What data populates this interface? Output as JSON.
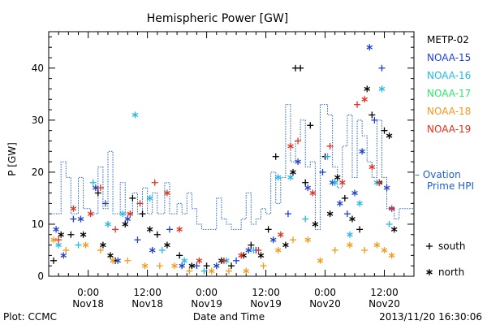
{
  "chart_data": {
    "type": "scatter",
    "title": "Hemispheric Power [GW]",
    "ylabel": "P [GW]",
    "xlabel": "Date and Time",
    "ylim": [
      0,
      47
    ],
    "yticks": [
      0,
      10,
      20,
      30,
      40
    ],
    "xlim": [
      "2013-11-17T16:00",
      "2013-11-20T18:00"
    ],
    "xticks": [
      {
        "t": "2013-11-18T00:00",
        "time": "0:00",
        "date": "Nov18"
      },
      {
        "t": "2013-11-18T12:00",
        "time": "12:00",
        "date": "Nov18"
      },
      {
        "t": "2013-11-19T00:00",
        "time": "0:00",
        "date": "Nov19"
      },
      {
        "t": "2013-11-19T12:00",
        "time": "12:00",
        "date": "Nov19"
      },
      {
        "t": "2013-11-20T00:00",
        "time": "0:00",
        "date": "Nov20"
      },
      {
        "t": "2013-11-20T12:00",
        "time": "12:00",
        "date": "Nov20"
      }
    ],
    "footer_left": "Plot: CCMC",
    "footer_right": "2013/11/20 16:30:06",
    "legend": [
      {
        "name": "METP-02",
        "color": "#000000"
      },
      {
        "name": "NOAA-15",
        "color": "#1f3fd0"
      },
      {
        "name": "NOAA-16",
        "color": "#26b8e6"
      },
      {
        "name": "NOAA-17",
        "color": "#2ee86a"
      },
      {
        "name": "NOAA-18",
        "color": "#f29a1a"
      },
      {
        "name": "NOAA-19",
        "color": "#e2301c"
      }
    ],
    "ovation": {
      "label_line1": "– Ovation",
      "label_line2": "Prime HPI",
      "color": "#1f5fd0",
      "steps": [
        [
          "2013-11-17T16:00",
          12
        ],
        [
          "2013-11-17T18:30",
          22
        ],
        [
          "2013-11-17T19:30",
          19
        ],
        [
          "2013-11-17T20:30",
          12
        ],
        [
          "2013-11-17T22:00",
          19
        ],
        [
          "2013-11-17T23:00",
          13
        ],
        [
          "2013-11-18T00:30",
          12
        ],
        [
          "2013-11-18T02:00",
          21
        ],
        [
          "2013-11-18T03:00",
          13
        ],
        [
          "2013-11-18T04:00",
          24
        ],
        [
          "2013-11-18T05:00",
          12
        ],
        [
          "2013-11-18T06:30",
          18
        ],
        [
          "2013-11-18T07:30",
          12
        ],
        [
          "2013-11-18T09:00",
          16
        ],
        [
          "2013-11-18T10:00",
          12
        ],
        [
          "2013-11-18T11:00",
          17
        ],
        [
          "2013-11-18T12:00",
          12
        ],
        [
          "2013-11-18T13:00",
          16
        ],
        [
          "2013-11-18T14:00",
          12
        ],
        [
          "2013-11-18T15:30",
          18
        ],
        [
          "2013-11-18T16:30",
          12
        ],
        [
          "2013-11-18T18:00",
          14
        ],
        [
          "2013-11-18T19:00",
          12
        ],
        [
          "2013-11-18T20:00",
          16
        ],
        [
          "2013-11-18T21:00",
          13
        ],
        [
          "2013-11-18T22:00",
          10
        ],
        [
          "2013-11-18T23:00",
          9
        ],
        [
          "2013-11-19T01:00",
          9
        ],
        [
          "2013-11-19T02:00",
          15
        ],
        [
          "2013-11-19T03:00",
          11
        ],
        [
          "2013-11-19T04:00",
          10
        ],
        [
          "2013-11-19T05:00",
          9
        ],
        [
          "2013-11-19T07:00",
          11
        ],
        [
          "2013-11-19T08:00",
          16
        ],
        [
          "2013-11-19T09:00",
          10
        ],
        [
          "2013-11-19T10:00",
          11
        ],
        [
          "2013-11-19T11:00",
          13
        ],
        [
          "2013-11-19T12:00",
          12
        ],
        [
          "2013-11-19T13:00",
          20
        ],
        [
          "2013-11-19T14:00",
          14
        ],
        [
          "2013-11-19T15:00",
          19
        ],
        [
          "2013-11-19T16:00",
          33
        ],
        [
          "2013-11-19T17:00",
          22
        ],
        [
          "2013-11-19T18:00",
          26
        ],
        [
          "2013-11-19T19:00",
          30
        ],
        [
          "2013-11-19T20:00",
          21
        ],
        [
          "2013-11-19T21:00",
          22
        ],
        [
          "2013-11-19T22:00",
          9
        ],
        [
          "2013-11-19T23:00",
          33
        ],
        [
          "2013-11-20T00:30",
          31
        ],
        [
          "2013-11-20T01:30",
          21
        ],
        [
          "2013-11-20T02:30",
          17
        ],
        [
          "2013-11-20T03:30",
          25
        ],
        [
          "2013-11-20T04:30",
          31
        ],
        [
          "2013-11-20T05:30",
          19
        ],
        [
          "2013-11-20T06:30",
          30
        ],
        [
          "2013-11-20T07:30",
          27
        ],
        [
          "2013-11-20T08:30",
          22
        ],
        [
          "2013-11-20T09:30",
          19
        ],
        [
          "2013-11-20T10:30",
          30
        ],
        [
          "2013-11-20T11:30",
          19
        ],
        [
          "2013-11-20T12:30",
          13
        ],
        [
          "2013-11-20T14:00",
          11
        ],
        [
          "2013-11-20T15:00",
          13
        ],
        [
          "2013-11-20T16:30",
          13
        ]
      ]
    },
    "marker_key": [
      {
        "symbol": "+",
        "label": "south"
      },
      {
        "symbol": "*",
        "label": "north"
      }
    ],
    "series": [
      {
        "name": "METP-02",
        "color": "#000000",
        "points": [
          [
            "2013-11-17T17:00",
            3,
            "+"
          ],
          [
            "2013-11-17T18:30",
            8,
            "*"
          ],
          [
            "2013-11-17T20:30",
            8,
            "+"
          ],
          [
            "2013-11-17T23:00",
            8,
            "*"
          ],
          [
            "2013-11-18T02:00",
            16,
            "+"
          ],
          [
            "2013-11-18T03:00",
            6,
            "*"
          ],
          [
            "2013-11-18T04:30",
            4,
            "*"
          ],
          [
            "2013-11-18T05:30",
            3,
            "+"
          ],
          [
            "2013-11-18T07:30",
            10,
            "*"
          ],
          [
            "2013-11-18T09:00",
            15,
            "+"
          ],
          [
            "2013-11-18T11:00",
            12,
            "+"
          ],
          [
            "2013-11-18T12:30",
            9,
            "*"
          ],
          [
            "2013-11-18T14:00",
            8,
            "+"
          ],
          [
            "2013-11-18T16:00",
            6,
            "*"
          ],
          [
            "2013-11-18T18:30",
            4,
            "+"
          ],
          [
            "2013-11-18T21:00",
            2,
            "*"
          ],
          [
            "2013-11-19T00:00",
            2,
            "+"
          ],
          [
            "2013-11-19T03:00",
            3,
            "*"
          ],
          [
            "2013-11-19T05:00",
            2,
            "+"
          ],
          [
            "2013-11-19T07:30",
            4,
            "*"
          ],
          [
            "2013-11-19T09:00",
            6,
            "+"
          ],
          [
            "2013-11-19T11:00",
            4,
            "*"
          ],
          [
            "2013-11-19T12:30",
            9,
            "+"
          ],
          [
            "2013-11-19T14:00",
            23,
            "+"
          ],
          [
            "2013-11-19T16:00",
            6,
            "*"
          ],
          [
            "2013-11-19T17:30",
            20,
            "*"
          ],
          [
            "2013-11-19T18:00",
            40,
            "+"
          ],
          [
            "2013-11-19T19:00",
            40,
            "+"
          ],
          [
            "2013-11-19T20:00",
            18,
            "+"
          ],
          [
            "2013-11-19T21:00",
            29,
            "+"
          ],
          [
            "2013-11-19T22:00",
            10,
            "*"
          ],
          [
            "2013-11-20T00:00",
            23,
            "+"
          ],
          [
            "2013-11-20T01:00",
            12,
            "*"
          ],
          [
            "2013-11-20T02:30",
            19,
            "*"
          ],
          [
            "2013-11-20T04:00",
            15,
            "+"
          ],
          [
            "2013-11-20T05:30",
            11,
            "*"
          ],
          [
            "2013-11-20T07:00",
            9,
            "+"
          ],
          [
            "2013-11-20T08:30",
            36,
            "*"
          ],
          [
            "2013-11-20T09:30",
            31,
            "+"
          ],
          [
            "2013-11-20T11:00",
            18,
            "*"
          ],
          [
            "2013-11-20T12:00",
            28,
            "+"
          ],
          [
            "2013-11-20T13:00",
            27,
            "*"
          ],
          [
            "2013-11-20T14:00",
            9,
            "*"
          ]
        ]
      },
      {
        "name": "NOAA-15",
        "color": "#1f3fd0",
        "points": [
          [
            "2013-11-17T17:30",
            9,
            "*"
          ],
          [
            "2013-11-17T19:00",
            4,
            "*"
          ],
          [
            "2013-11-17T21:00",
            11,
            "+"
          ],
          [
            "2013-11-17T22:30",
            11,
            "*"
          ],
          [
            "2013-11-18T01:30",
            17,
            "*"
          ],
          [
            "2013-11-18T03:30",
            14,
            "+"
          ],
          [
            "2013-11-18T06:00",
            3,
            "*"
          ],
          [
            "2013-11-18T08:00",
            11,
            "*"
          ],
          [
            "2013-11-18T10:00",
            7,
            "+"
          ],
          [
            "2013-11-18T13:00",
            5,
            "*"
          ],
          [
            "2013-11-18T16:30",
            9,
            "+"
          ],
          [
            "2013-11-18T19:00",
            2,
            "*"
          ],
          [
            "2013-11-18T22:00",
            2,
            "+"
          ],
          [
            "2013-11-19T02:00",
            2,
            "*"
          ],
          [
            "2013-11-19T06:00",
            3,
            "+"
          ],
          [
            "2013-11-19T08:30",
            5,
            "*"
          ],
          [
            "2013-11-19T10:00",
            5,
            "+"
          ],
          [
            "2013-11-19T13:30",
            7,
            "*"
          ],
          [
            "2013-11-19T16:30",
            12,
            "+"
          ],
          [
            "2013-11-19T18:30",
            22,
            "*"
          ],
          [
            "2013-11-19T20:30",
            17,
            "*"
          ],
          [
            "2013-11-19T23:30",
            20,
            "+"
          ],
          [
            "2013-11-20T01:30",
            18,
            "*"
          ],
          [
            "2013-11-20T03:00",
            14,
            "*"
          ],
          [
            "2013-11-20T04:30",
            12,
            "+"
          ],
          [
            "2013-11-20T06:00",
            16,
            "*"
          ],
          [
            "2013-11-20T07:30",
            24,
            "*"
          ],
          [
            "2013-11-20T09:00",
            44,
            "*"
          ],
          [
            "2013-11-20T10:00",
            30,
            "+"
          ],
          [
            "2013-11-20T11:30",
            40,
            "+"
          ],
          [
            "2013-11-20T12:30",
            17,
            "*"
          ],
          [
            "2013-11-20T13:30",
            13,
            "*"
          ]
        ]
      },
      {
        "name": "NOAA-16",
        "color": "#26b8e6",
        "points": [
          [
            "2013-11-17T18:00",
            6,
            "*"
          ],
          [
            "2013-11-17T22:00",
            6,
            "+"
          ],
          [
            "2013-11-18T01:00",
            18,
            "+"
          ],
          [
            "2013-11-18T04:00",
            10,
            "*"
          ],
          [
            "2013-11-18T07:00",
            12,
            "*"
          ],
          [
            "2013-11-18T09:30",
            31,
            "*"
          ],
          [
            "2013-11-18T12:30",
            15,
            "*"
          ],
          [
            "2013-11-18T15:00",
            5,
            "+"
          ],
          [
            "2013-11-18T19:30",
            3,
            "*"
          ],
          [
            "2013-11-18T23:30",
            1,
            "+"
          ],
          [
            "2013-11-19T04:00",
            3,
            "*"
          ],
          [
            "2013-11-19T09:30",
            5,
            "+"
          ],
          [
            "2013-11-19T14:30",
            19,
            "*"
          ],
          [
            "2013-11-19T17:00",
            19,
            "*"
          ],
          [
            "2013-11-19T20:00",
            11,
            "+"
          ],
          [
            "2013-11-20T00:30",
            23,
            "+"
          ],
          [
            "2013-11-20T02:00",
            18,
            "*"
          ],
          [
            "2013-11-20T05:00",
            8,
            "*"
          ],
          [
            "2013-11-20T07:00",
            14,
            "*"
          ],
          [
            "2013-11-20T10:30",
            18,
            "*"
          ],
          [
            "2013-11-20T11:30",
            36,
            "*"
          ],
          [
            "2013-11-20T13:00",
            10,
            "+"
          ]
        ]
      },
      {
        "name": "NOAA-17",
        "color": "#2ee86a",
        "points": []
      },
      {
        "name": "NOAA-18",
        "color": "#f29a1a",
        "points": [
          [
            "2013-11-17T17:00",
            7,
            "*"
          ],
          [
            "2013-11-17T19:30",
            5,
            "+"
          ],
          [
            "2013-11-17T23:30",
            6,
            "*"
          ],
          [
            "2013-11-18T02:30",
            5,
            "+"
          ],
          [
            "2013-11-18T05:00",
            3,
            "*"
          ],
          [
            "2013-11-18T08:00",
            3,
            "+"
          ],
          [
            "2013-11-18T11:30",
            2,
            "*"
          ],
          [
            "2013-11-18T14:30",
            2,
            "+"
          ],
          [
            "2013-11-18T17:30",
            2,
            "*"
          ],
          [
            "2013-11-18T20:30",
            1,
            "+"
          ],
          [
            "2013-11-19T01:00",
            1,
            "*"
          ],
          [
            "2013-11-19T04:30",
            1,
            "+"
          ],
          [
            "2013-11-19T08:00",
            1,
            "*"
          ],
          [
            "2013-11-19T11:30",
            2,
            "+"
          ],
          [
            "2013-11-19T14:30",
            5,
            "*"
          ],
          [
            "2013-11-19T17:30",
            7,
            "+"
          ],
          [
            "2013-11-19T20:30",
            7,
            "*"
          ],
          [
            "2013-11-19T23:00",
            3,
            "*"
          ],
          [
            "2013-11-20T02:00",
            5,
            "+"
          ],
          [
            "2013-11-20T05:00",
            6,
            "*"
          ],
          [
            "2013-11-20T08:00",
            5,
            "+"
          ],
          [
            "2013-11-20T10:30",
            6,
            "*"
          ],
          [
            "2013-11-20T12:00",
            5,
            "*"
          ],
          [
            "2013-11-20T13:30",
            4,
            "*"
          ]
        ]
      },
      {
        "name": "NOAA-19",
        "color": "#e2301c",
        "points": [
          [
            "2013-11-17T18:00",
            7,
            "+"
          ],
          [
            "2013-11-17T21:00",
            13,
            "*"
          ],
          [
            "2013-11-18T00:30",
            12,
            "*"
          ],
          [
            "2013-11-18T02:30",
            17,
            "+"
          ],
          [
            "2013-11-18T05:30",
            9,
            "+"
          ],
          [
            "2013-11-18T08:30",
            12,
            "*"
          ],
          [
            "2013-11-18T10:30",
            14,
            "+"
          ],
          [
            "2013-11-18T13:30",
            18,
            "+"
          ],
          [
            "2013-11-18T16:00",
            16,
            "*"
          ],
          [
            "2013-11-18T18:30",
            9,
            "*"
          ],
          [
            "2013-11-18T22:30",
            3,
            "*"
          ],
          [
            "2013-11-19T03:30",
            3,
            "+"
          ],
          [
            "2013-11-19T07:00",
            4,
            "*"
          ],
          [
            "2013-11-19T10:30",
            5,
            "+"
          ],
          [
            "2013-11-19T15:00",
            8,
            "*"
          ],
          [
            "2013-11-19T17:00",
            25,
            "*"
          ],
          [
            "2013-11-19T18:30",
            26,
            "+"
          ],
          [
            "2013-11-19T21:30",
            16,
            "*"
          ],
          [
            "2013-11-20T01:00",
            25,
            "+"
          ],
          [
            "2013-11-20T03:30",
            18,
            "*"
          ],
          [
            "2013-11-20T06:30",
            33,
            "+"
          ],
          [
            "2013-11-20T08:00",
            34,
            "*"
          ],
          [
            "2013-11-20T09:30",
            21,
            "*"
          ],
          [
            "2013-11-20T11:00",
            18,
            "+"
          ],
          [
            "2013-11-20T13:30",
            13,
            "+"
          ]
        ]
      }
    ]
  }
}
